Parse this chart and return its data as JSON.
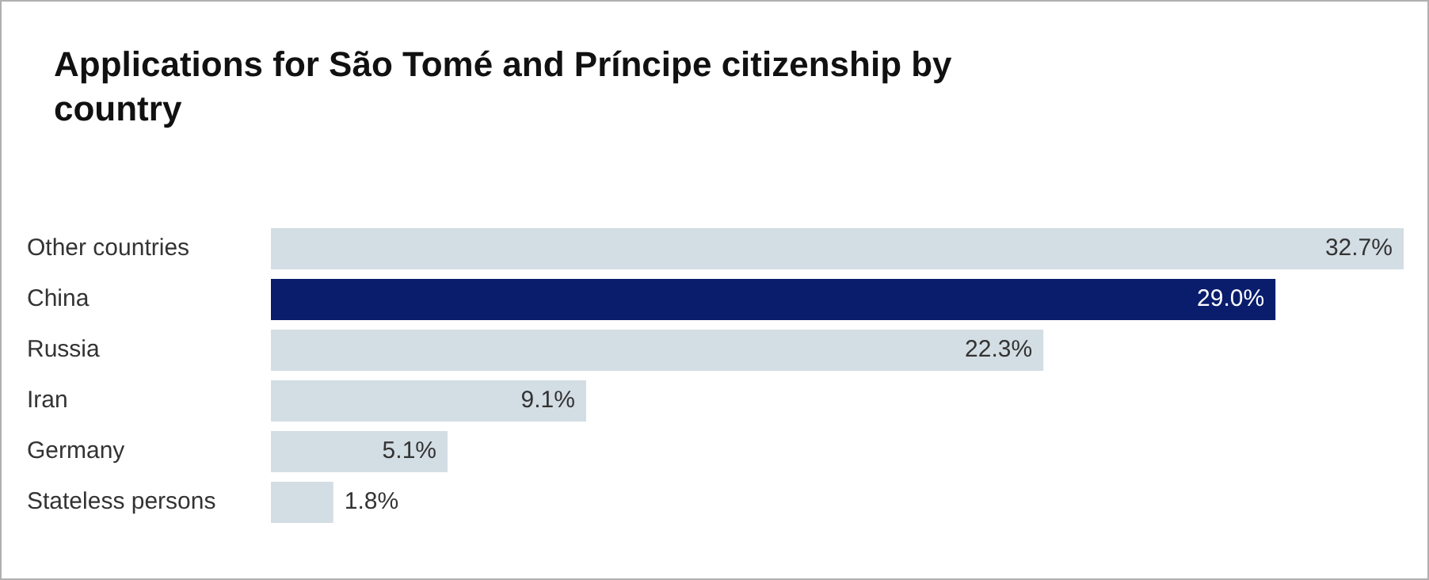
{
  "chart_data": {
    "type": "bar",
    "orientation": "horizontal",
    "title": "Applications for São Tomé and Príncipe citizenship by country",
    "categories": [
      "Other countries",
      "China",
      "Russia",
      "Iran",
      "Germany",
      "Stateless persons"
    ],
    "values": [
      32.7,
      29.0,
      22.3,
      9.1,
      5.1,
      1.8
    ],
    "colors": [
      "#d3dde4",
      "#0a1d6c",
      "#d3dde4",
      "#d3dde4",
      "#d3dde4",
      "#d3dde4"
    ],
    "value_labels": [
      "32.7%",
      "29.0%",
      "22.3%",
      "9.1%",
      "5.1%",
      "1.8%"
    ],
    "legend": false
  }
}
